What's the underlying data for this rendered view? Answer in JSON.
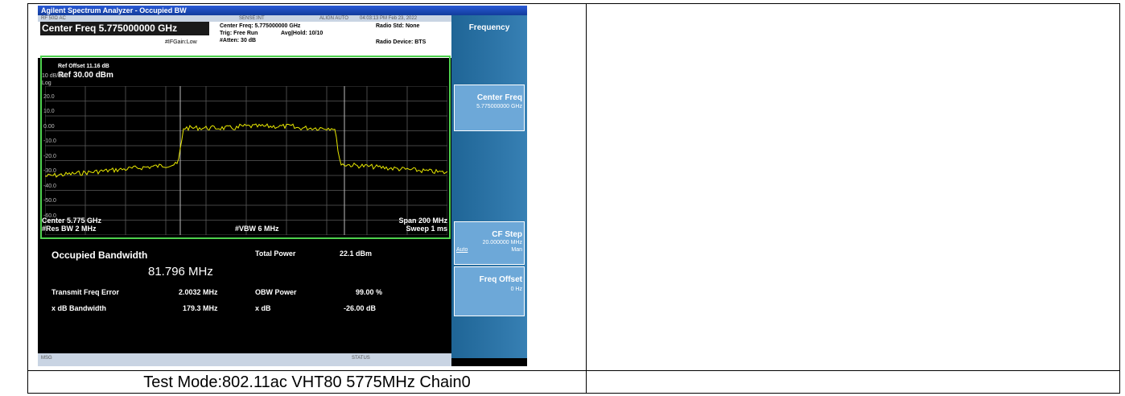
{
  "window": {
    "title": "Agilent Spectrum Analyzer - Occupied BW"
  },
  "status_row": {
    "input": "RF 50Ω AC",
    "sense": "SENSE:INT",
    "align": "ALIGN AUTO",
    "datetime": "04:03:13 PM Feb 23, 2022"
  },
  "header": {
    "center_freq_big": "Center Freq 5.775000000 GHz",
    "center_freq_small": "Center Freq: 5.775000000 GHz",
    "trig": "Trig: Free Run",
    "avg_hold": "Avg|Hold: 10/10",
    "atten": "#Atten: 30 dB",
    "ifgain": "#IFGain:Low",
    "radio_std": "Radio Std: None",
    "radio_device": "Radio Device: BTS"
  },
  "plot": {
    "ref_offset": "Ref Offset 11.16 dB",
    "ref_level": "Ref 30.00 dBm",
    "scale": "10 dB/div",
    "log": "Log",
    "y_ticks": [
      "20.0",
      "10.0",
      "0.00",
      "-10.0",
      "-20.0",
      "-30.0",
      "-40.0",
      "-50.0",
      "-60.0"
    ],
    "center": "Center  5.775 GHz",
    "res_bw": "#Res BW  2 MHz",
    "vbw": "#VBW  6 MHz",
    "span": "Span 200 MHz",
    "sweep": "Sweep  1 ms"
  },
  "results": {
    "obw_label": "Occupied Bandwidth",
    "obw_value": "81.796 MHz",
    "total_power_label": "Total Power",
    "total_power_value": "22.1 dBm",
    "tfe_label": "Transmit Freq Error",
    "tfe_value": "2.0032 MHz",
    "obw_power_label": "OBW Power",
    "obw_power_value": "99.00 %",
    "xdb_bw_label": "x dB Bandwidth",
    "xdb_bw_value": "179.3 MHz",
    "xdb_label": "x dB",
    "xdb_value": "-26.00 dB"
  },
  "softkeys": {
    "menu_title": "Frequency",
    "center_freq_label": "Center Freq",
    "center_freq_value": "5.775000000 GHz",
    "cf_step_label": "CF Step",
    "cf_step_value": "20.000000 MHz",
    "cf_step_auto": "Auto",
    "cf_step_man": "Man",
    "freq_offset_label": "Freq Offset",
    "freq_offset_value": "0 Hz"
  },
  "bottom": {
    "msg": "MSG",
    "status": "STATUS"
  },
  "caption": "Test Mode:802.11ac VHT80 5775MHz Chain0",
  "colors": {
    "trace": "#e8e800",
    "frame": "#4dd04d",
    "softkey_bg": "#3780b4"
  }
}
